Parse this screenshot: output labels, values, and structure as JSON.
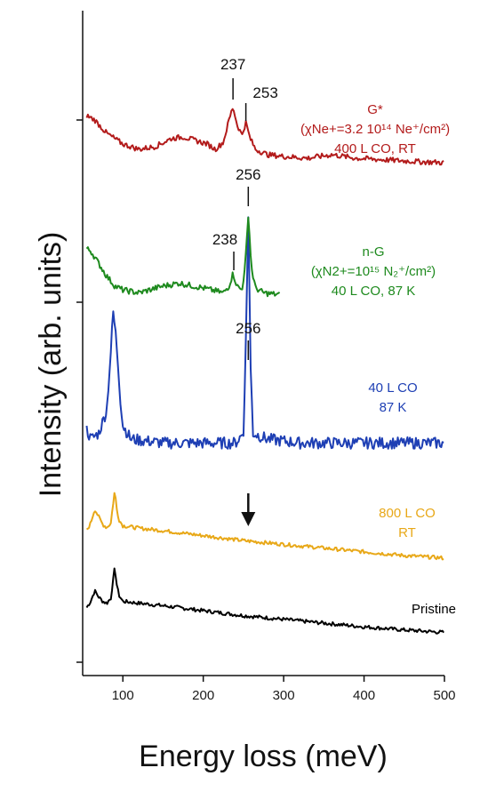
{
  "chart_data": {
    "type": "line",
    "xlabel": "Energy loss (meV)",
    "ylabel": "Intensity (arb. units)",
    "xlim": [
      50,
      500
    ],
    "xticks": [
      100,
      200,
      300,
      400,
      500
    ],
    "yticks_unlabeled": 3,
    "series": [
      {
        "name": "Pristine",
        "label_lines": [
          "Pristine"
        ],
        "color": "#000000",
        "points": [
          [
            55,
            0.45
          ],
          [
            60,
            0.55
          ],
          [
            65,
            0.72
          ],
          [
            70,
            0.62
          ],
          [
            75,
            0.55
          ],
          [
            80,
            0.52
          ],
          [
            85,
            0.6
          ],
          [
            88,
            0.9
          ],
          [
            90,
            1.1
          ],
          [
            92,
            0.85
          ],
          [
            95,
            0.65
          ],
          [
            100,
            0.55
          ],
          [
            120,
            0.52
          ],
          [
            150,
            0.48
          ],
          [
            200,
            0.4
          ],
          [
            250,
            0.32
          ],
          [
            300,
            0.26
          ],
          [
            350,
            0.2
          ],
          [
            400,
            0.14
          ],
          [
            450,
            0.09
          ],
          [
            500,
            0.05
          ]
        ]
      },
      {
        "name": "800 L CO RT",
        "label_lines": [
          "800 L CO",
          "RT"
        ],
        "color": "#E8A818",
        "points": [
          [
            55,
            0.5
          ],
          [
            60,
            0.62
          ],
          [
            65,
            0.85
          ],
          [
            70,
            0.72
          ],
          [
            75,
            0.6
          ],
          [
            80,
            0.55
          ],
          [
            85,
            0.62
          ],
          [
            88,
            0.95
          ],
          [
            90,
            1.15
          ],
          [
            92,
            0.88
          ],
          [
            95,
            0.68
          ],
          [
            100,
            0.58
          ],
          [
            120,
            0.54
          ],
          [
            150,
            0.5
          ],
          [
            200,
            0.42
          ],
          [
            250,
            0.34
          ],
          [
            300,
            0.28
          ],
          [
            350,
            0.22
          ],
          [
            400,
            0.16
          ],
          [
            450,
            0.1
          ],
          [
            500,
            0.06
          ]
        ]
      },
      {
        "name": "40 L CO 87 K",
        "label_lines": [
          "40 L CO",
          "87 K"
        ],
        "color": "#1E3FB4",
        "points": [
          [
            55,
            0.1
          ],
          [
            60,
            0.05
          ],
          [
            70,
            0.08
          ],
          [
            80,
            0.2
          ],
          [
            85,
            0.5
          ],
          [
            88,
            0.7
          ],
          [
            92,
            0.55
          ],
          [
            97,
            0.25
          ],
          [
            100,
            0.12
          ],
          [
            110,
            0.05
          ],
          [
            150,
            0.03
          ],
          [
            200,
            0.03
          ],
          [
            240,
            0.03
          ],
          [
            250,
            0.08
          ],
          [
            253,
            0.55
          ],
          [
            256,
            1.2
          ],
          [
            259,
            0.4
          ],
          [
            262,
            0.08
          ],
          [
            280,
            0.05
          ],
          [
            320,
            0.03
          ],
          [
            380,
            0.03
          ],
          [
            450,
            0.03
          ],
          [
            500,
            0.03
          ]
        ]
      },
      {
        "name": "n-G 40 L CO, 87 K",
        "label_lines": [
          "n-G",
          "(χN2+=10¹⁵ N₂⁺/cm²)",
          "40 L CO, 87 K"
        ],
        "color": "#1E8A1E",
        "points": [
          [
            55,
            0.5
          ],
          [
            60,
            0.48
          ],
          [
            70,
            0.35
          ],
          [
            80,
            0.22
          ],
          [
            90,
            0.12
          ],
          [
            100,
            0.08
          ],
          [
            120,
            0.05
          ],
          [
            150,
            0.12
          ],
          [
            170,
            0.15
          ],
          [
            200,
            0.1
          ],
          [
            225,
            0.05
          ],
          [
            232,
            0.12
          ],
          [
            237,
            0.25
          ],
          [
            242,
            0.12
          ],
          [
            248,
            0.08
          ],
          [
            252,
            0.3
          ],
          [
            256,
            0.85
          ],
          [
            260,
            0.3
          ],
          [
            265,
            0.1
          ],
          [
            275,
            0.05
          ],
          [
            295,
            0.03
          ]
        ]
      },
      {
        "name": "G* 400 L CO, RT",
        "label_lines": [
          "G*",
          "(χNe+=3.2 10¹⁴ Ne⁺/cm²)",
          "400 L CO, RT"
        ],
        "color": "#B31B1B",
        "points": [
          [
            55,
            0.6
          ],
          [
            65,
            0.55
          ],
          [
            80,
            0.4
          ],
          [
            100,
            0.28
          ],
          [
            120,
            0.22
          ],
          [
            140,
            0.25
          ],
          [
            160,
            0.34
          ],
          [
            175,
            0.36
          ],
          [
            190,
            0.32
          ],
          [
            205,
            0.28
          ],
          [
            215,
            0.22
          ],
          [
            225,
            0.3
          ],
          [
            232,
            0.55
          ],
          [
            237,
            0.7
          ],
          [
            242,
            0.5
          ],
          [
            248,
            0.38
          ],
          [
            253,
            0.52
          ],
          [
            258,
            0.35
          ],
          [
            265,
            0.22
          ],
          [
            280,
            0.16
          ],
          [
            300,
            0.14
          ],
          [
            330,
            0.12
          ],
          [
            360,
            0.16
          ],
          [
            390,
            0.12
          ],
          [
            430,
            0.1
          ],
          [
            470,
            0.08
          ],
          [
            500,
            0.07
          ]
        ]
      }
    ],
    "peak_labels": [
      {
        "text": "237"
      },
      {
        "text": "253"
      },
      {
        "text": "256"
      },
      {
        "text": "238"
      },
      {
        "text": "256"
      }
    ],
    "arrow_at": 256
  }
}
